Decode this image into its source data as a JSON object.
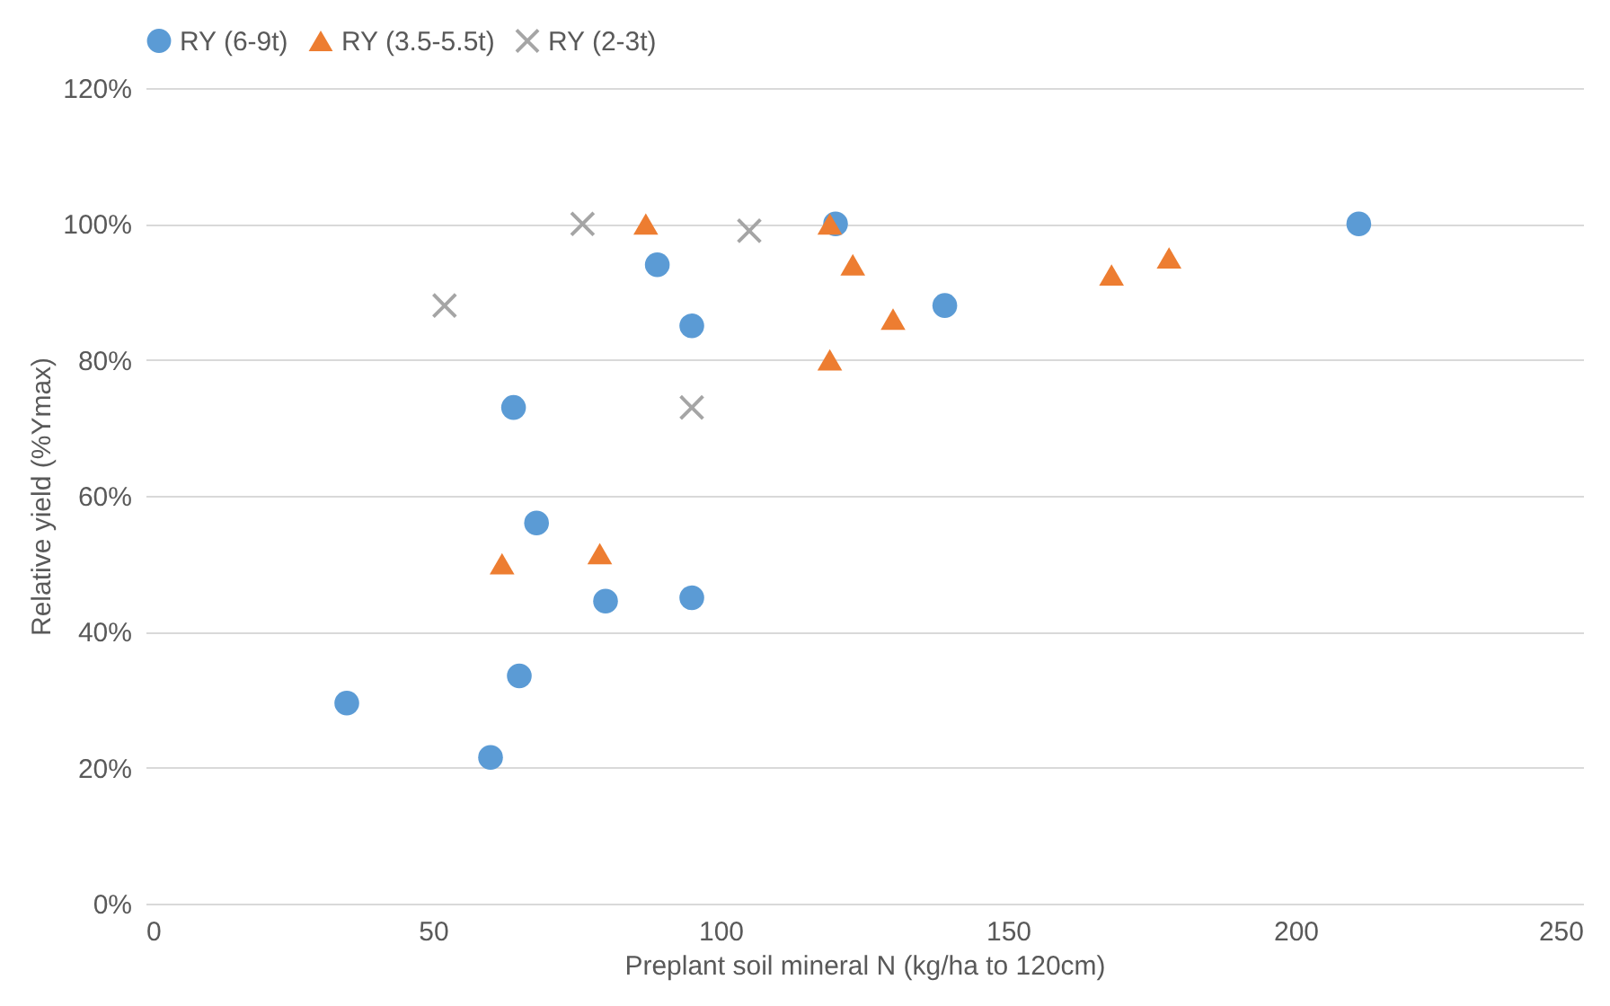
{
  "chart_data": {
    "type": "scatter",
    "xlabel": "Preplant soil mineral N (kg/ha to 120cm)",
    "ylabel": "Relative yield (%Ymax)",
    "xlim": [
      0,
      250
    ],
    "xticks": [
      0,
      50,
      100,
      150,
      200,
      250
    ],
    "ylim": [
      0,
      120
    ],
    "yticks": [
      {
        "value": 0,
        "label": "0%"
      },
      {
        "value": 20,
        "label": "20%"
      },
      {
        "value": 40,
        "label": "40%"
      },
      {
        "value": 60,
        "label": "60%"
      },
      {
        "value": 80,
        "label": "80%"
      },
      {
        "value": 100,
        "label": "100%"
      },
      {
        "value": 120,
        "label": "120%"
      }
    ],
    "grid": "y",
    "legend": "top",
    "series": [
      {
        "name": "RY (6-9t)",
        "color": "#5b9bd5",
        "marker": "circle",
        "x": [
          35,
          60,
          64,
          65,
          68,
          80,
          89,
          95,
          95,
          120,
          139,
          211
        ],
        "values": [
          29.5,
          21.5,
          73,
          33.5,
          56,
          44.5,
          94,
          85,
          45,
          100,
          88,
          100
        ]
      },
      {
        "name": "RY (3.5-5.5t)",
        "color": "#ed7d31",
        "marker": "triangle",
        "x": [
          62,
          79,
          87,
          119,
          119,
          123,
          130,
          168,
          178
        ],
        "values": [
          50,
          51.5,
          100,
          100,
          80,
          94,
          86,
          92.5,
          95
        ]
      },
      {
        "name": "RY (2-3t)",
        "color": "#a5a5a5",
        "marker": "cross",
        "x": [
          52,
          76,
          95,
          105
        ],
        "values": [
          88,
          100,
          73,
          99
        ]
      }
    ]
  }
}
